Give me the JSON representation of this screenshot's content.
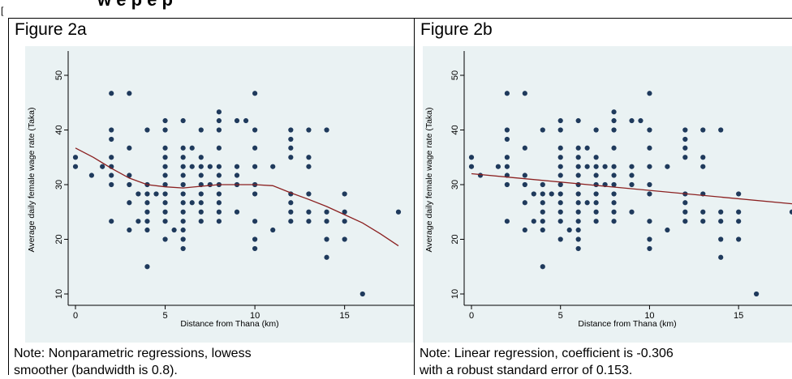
{
  "header": {
    "title_fragment": "w e p e p",
    "corner_mark": "["
  },
  "panels": [
    {
      "title": "Figure 2a",
      "note_line1": "Note: Nonparametric regressions, lowess",
      "note_line2": "smoother (bandwidth is 0.8)."
    },
    {
      "title": "Figure 2b",
      "note_line1": "Note: Linear regression, coefficient is -0.306",
      "note_line2": "with a robust standard error of 0.153."
    }
  ],
  "colors": {
    "plot_background": "#eaf2f3",
    "marker": "#1f3a5c",
    "fit_line": "#8b2020",
    "axis": "#000000"
  },
  "chart_data": [
    {
      "type": "scatter",
      "title": "Figure 2a",
      "xlabel": "Distance from Thana (km)",
      "ylabel": "Average daily female wage rate (Taka)",
      "xlim": [
        0,
        18
      ],
      "ylim": [
        10,
        50
      ],
      "xticks": [
        0,
        5,
        10,
        15
      ],
      "yticks": [
        10,
        20,
        30,
        40,
        50
      ],
      "grid": false,
      "fit": {
        "type": "lowess",
        "bandwidth": 0.8,
        "x": [
          0,
          1,
          2,
          3,
          4,
          5,
          6,
          7,
          8,
          9,
          10,
          11,
          12,
          13,
          14,
          15,
          16,
          17,
          18
        ],
        "y": [
          36.7,
          35.0,
          33.0,
          31.2,
          30.0,
          29.6,
          29.4,
          29.7,
          30.0,
          30.0,
          30.0,
          29.8,
          28.5,
          27.3,
          26.0,
          24.5,
          23.0,
          21.0,
          18.8
        ]
      },
      "points": [
        [
          0,
          35
        ],
        [
          0,
          33.3
        ],
        [
          0.9,
          31.7
        ],
        [
          1.5,
          33.3
        ],
        [
          2,
          46.7
        ],
        [
          2,
          40
        ],
        [
          2,
          38.3
        ],
        [
          2,
          35
        ],
        [
          2,
          33.3
        ],
        [
          2,
          31.7
        ],
        [
          2,
          30
        ],
        [
          2,
          23.3
        ],
        [
          3,
          46.7
        ],
        [
          3,
          36.7
        ],
        [
          3,
          31.7
        ],
        [
          3,
          30
        ],
        [
          3,
          26.7
        ],
        [
          3,
          21.7
        ],
        [
          3.5,
          28.3
        ],
        [
          3.5,
          23.3
        ],
        [
          4,
          40
        ],
        [
          4,
          30
        ],
        [
          4,
          28.3
        ],
        [
          4,
          26.7
        ],
        [
          4,
          25
        ],
        [
          4,
          23.3
        ],
        [
          4,
          21.7
        ],
        [
          4,
          15
        ],
        [
          4.5,
          28.3
        ],
        [
          5,
          41.7
        ],
        [
          5,
          40
        ],
        [
          5,
          36.7
        ],
        [
          5,
          35
        ],
        [
          5,
          33.3
        ],
        [
          5,
          31.7
        ],
        [
          5,
          30
        ],
        [
          5,
          28.3
        ],
        [
          5,
          26.7
        ],
        [
          5,
          25
        ],
        [
          5,
          23.3
        ],
        [
          5,
          20
        ],
        [
          5.5,
          21.7
        ],
        [
          6,
          41.7
        ],
        [
          6,
          36.7
        ],
        [
          6,
          35
        ],
        [
          6,
          33.3
        ],
        [
          6,
          31.7
        ],
        [
          6,
          30
        ],
        [
          6,
          28.3
        ],
        [
          6,
          26.7
        ],
        [
          6,
          25
        ],
        [
          6,
          23.3
        ],
        [
          6,
          21.7
        ],
        [
          6,
          20
        ],
        [
          6,
          18.3
        ],
        [
          6.5,
          26.7
        ],
        [
          6.5,
          36.7
        ],
        [
          6.5,
          33.3
        ],
        [
          7,
          40
        ],
        [
          7,
          35
        ],
        [
          7,
          33.3
        ],
        [
          7,
          31.7
        ],
        [
          7,
          30
        ],
        [
          7,
          28.3
        ],
        [
          7,
          26.7
        ],
        [
          7,
          25
        ],
        [
          7,
          23.3
        ],
        [
          7.5,
          30
        ],
        [
          7.5,
          33.3
        ],
        [
          8,
          43.3
        ],
        [
          8,
          41.7
        ],
        [
          8,
          40
        ],
        [
          8,
          36.7
        ],
        [
          8,
          33.3
        ],
        [
          8,
          31.7
        ],
        [
          8,
          30
        ],
        [
          8,
          28.3
        ],
        [
          8,
          26.7
        ],
        [
          8,
          25
        ],
        [
          8,
          23.3
        ],
        [
          9,
          41.7
        ],
        [
          9,
          33.3
        ],
        [
          9,
          31.7
        ],
        [
          9,
          30
        ],
        [
          9,
          25
        ],
        [
          9.5,
          41.7
        ],
        [
          10,
          46.7
        ],
        [
          10,
          40
        ],
        [
          10,
          36.7
        ],
        [
          10,
          33.3
        ],
        [
          10,
          30
        ],
        [
          10,
          28.3
        ],
        [
          10,
          23.3
        ],
        [
          10,
          20
        ],
        [
          10,
          18.3
        ],
        [
          11,
          33.3
        ],
        [
          11,
          21.7
        ],
        [
          12,
          40
        ],
        [
          12,
          38.3
        ],
        [
          12,
          36.7
        ],
        [
          12,
          35
        ],
        [
          12,
          28.3
        ],
        [
          12,
          26.7
        ],
        [
          12,
          25
        ],
        [
          12,
          23.3
        ],
        [
          13,
          40
        ],
        [
          13,
          35
        ],
        [
          13,
          33.3
        ],
        [
          13,
          28.3
        ],
        [
          13,
          25
        ],
        [
          13,
          23.3
        ],
        [
          14,
          40
        ],
        [
          14,
          25
        ],
        [
          14,
          23.3
        ],
        [
          14,
          20
        ],
        [
          14,
          16.7
        ],
        [
          15,
          28.3
        ],
        [
          15,
          25
        ],
        [
          15,
          23.3
        ],
        [
          15,
          20
        ],
        [
          16,
          10
        ],
        [
          18,
          25
        ]
      ]
    },
    {
      "type": "scatter",
      "title": "Figure 2b",
      "xlabel": "Distance from Thana (km)",
      "ylabel": "Average daily female wage rate (Taka)",
      "xlim": [
        0,
        18
      ],
      "ylim": [
        10,
        50
      ],
      "xticks": [
        0,
        5,
        10,
        15
      ],
      "yticks": [
        10,
        20,
        30,
        40,
        50
      ],
      "grid": false,
      "fit": {
        "type": "linear",
        "coefficient": -0.306,
        "robust_se": 0.153,
        "intercept": 32.0,
        "x": [
          0,
          18
        ],
        "y": [
          32.0,
          26.5
        ]
      },
      "points": [
        [
          0,
          35
        ],
        [
          0,
          33.3
        ],
        [
          0.5,
          31.7
        ],
        [
          1.5,
          33.3
        ],
        [
          2,
          46.7
        ],
        [
          2,
          40
        ],
        [
          2,
          38.3
        ],
        [
          2,
          35
        ],
        [
          2,
          33.3
        ],
        [
          2,
          31.7
        ],
        [
          2,
          30
        ],
        [
          2,
          23.3
        ],
        [
          3,
          46.7
        ],
        [
          3,
          36.7
        ],
        [
          3,
          31.7
        ],
        [
          3,
          30
        ],
        [
          3,
          26.7
        ],
        [
          3,
          21.7
        ],
        [
          3.5,
          28.3
        ],
        [
          3.5,
          23.3
        ],
        [
          4,
          40
        ],
        [
          4,
          30
        ],
        [
          4,
          28.3
        ],
        [
          4,
          26.7
        ],
        [
          4,
          25
        ],
        [
          4,
          23.3
        ],
        [
          4,
          21.7
        ],
        [
          4,
          15
        ],
        [
          4.5,
          28.3
        ],
        [
          5,
          41.7
        ],
        [
          5,
          40
        ],
        [
          5,
          36.7
        ],
        [
          5,
          35
        ],
        [
          5,
          33.3
        ],
        [
          5,
          31.7
        ],
        [
          5,
          30
        ],
        [
          5,
          28.3
        ],
        [
          5,
          26.7
        ],
        [
          5,
          25
        ],
        [
          5,
          23.3
        ],
        [
          5,
          20
        ],
        [
          5.5,
          21.7
        ],
        [
          6,
          41.7
        ],
        [
          6,
          36.7
        ],
        [
          6,
          35
        ],
        [
          6,
          33.3
        ],
        [
          6,
          31.7
        ],
        [
          6,
          30
        ],
        [
          6,
          28.3
        ],
        [
          6,
          26.7
        ],
        [
          6,
          25
        ],
        [
          6,
          23.3
        ],
        [
          6,
          21.7
        ],
        [
          6,
          20
        ],
        [
          6,
          18.3
        ],
        [
          6.5,
          26.7
        ],
        [
          6.5,
          36.7
        ],
        [
          6.5,
          33.3
        ],
        [
          7,
          40
        ],
        [
          7,
          35
        ],
        [
          7,
          33.3
        ],
        [
          7,
          31.7
        ],
        [
          7,
          30
        ],
        [
          7,
          28.3
        ],
        [
          7,
          26.7
        ],
        [
          7,
          25
        ],
        [
          7,
          23.3
        ],
        [
          7.5,
          30
        ],
        [
          7.5,
          33.3
        ],
        [
          8,
          43.3
        ],
        [
          8,
          41.7
        ],
        [
          8,
          40
        ],
        [
          8,
          36.7
        ],
        [
          8,
          33.3
        ],
        [
          8,
          31.7
        ],
        [
          8,
          30
        ],
        [
          8,
          28.3
        ],
        [
          8,
          26.7
        ],
        [
          8,
          25
        ],
        [
          8,
          23.3
        ],
        [
          9,
          41.7
        ],
        [
          9,
          33.3
        ],
        [
          9,
          31.7
        ],
        [
          9,
          30
        ],
        [
          9,
          25
        ],
        [
          9.5,
          41.7
        ],
        [
          10,
          46.7
        ],
        [
          10,
          40
        ],
        [
          10,
          36.7
        ],
        [
          10,
          33.3
        ],
        [
          10,
          30
        ],
        [
          10,
          28.3
        ],
        [
          10,
          23.3
        ],
        [
          10,
          20
        ],
        [
          10,
          18.3
        ],
        [
          11,
          33.3
        ],
        [
          11,
          21.7
        ],
        [
          12,
          40
        ],
        [
          12,
          38.3
        ],
        [
          12,
          36.7
        ],
        [
          12,
          35
        ],
        [
          12,
          28.3
        ],
        [
          12,
          26.7
        ],
        [
          12,
          25
        ],
        [
          12,
          23.3
        ],
        [
          13,
          40
        ],
        [
          13,
          35
        ],
        [
          13,
          33.3
        ],
        [
          13,
          28.3
        ],
        [
          13,
          25
        ],
        [
          13,
          23.3
        ],
        [
          14,
          40
        ],
        [
          14,
          25
        ],
        [
          14,
          23.3
        ],
        [
          14,
          20
        ],
        [
          14,
          16.7
        ],
        [
          15,
          28.3
        ],
        [
          15,
          25
        ],
        [
          15,
          23.3
        ],
        [
          15,
          20
        ],
        [
          16,
          10
        ],
        [
          18,
          25
        ]
      ]
    }
  ]
}
